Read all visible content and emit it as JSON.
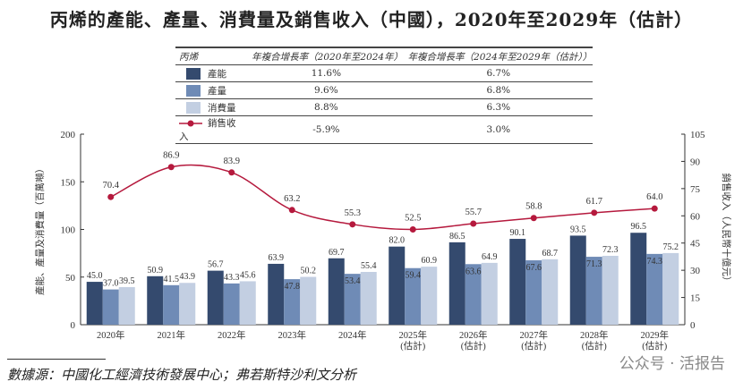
{
  "title": "丙烯的產能、產量、消費量及銷售收入（中國），2020年至2029年（估計）",
  "legend_table": {
    "headers": [
      "丙烯",
      "年複合增長率（2020年至2024年）",
      "年複合增長率（2024年至2029年（估計））"
    ],
    "rows": [
      {
        "label": "產能",
        "color": "#344a6e",
        "cagr1": "11.6%",
        "cagr2": "6.7%"
      },
      {
        "label": "產量",
        "color": "#6f8bb6",
        "cagr1": "9.6%",
        "cagr2": "6.8%"
      },
      {
        "label": "消費量",
        "color": "#c3cfe2",
        "cagr1": "8.8%",
        "cagr2": "6.3%"
      },
      {
        "label": "銷售收入",
        "color": "#b5193d",
        "cagr1": "-5.9%",
        "cagr2": "3.0%"
      }
    ]
  },
  "chart_data": {
    "type": "bar+line",
    "categories": [
      "2020年",
      "2021年",
      "2022年",
      "2023年",
      "2024年",
      "2025年\n(估計)",
      "2026年\n(估計)",
      "2027年\n(估計)",
      "2028年\n(估計)",
      "2029年\n(估計)"
    ],
    "series": [
      {
        "name": "產能",
        "axis": "left",
        "values": [
          45.0,
          50.9,
          56.7,
          63.9,
          69.7,
          82.0,
          86.5,
          90.1,
          93.5,
          96.5
        ]
      },
      {
        "name": "產量",
        "axis": "left",
        "values": [
          37.0,
          41.5,
          43.3,
          47.8,
          53.4,
          59.4,
          63.6,
          67.6,
          71.3,
          74.3
        ]
      },
      {
        "name": "消費量",
        "axis": "left",
        "values": [
          39.5,
          43.9,
          45.6,
          50.2,
          55.4,
          60.9,
          64.9,
          68.7,
          72.3,
          75.2
        ]
      },
      {
        "name": "銷售收入",
        "axis": "right",
        "type": "line",
        "values": [
          70.4,
          86.9,
          83.9,
          63.2,
          55.3,
          52.5,
          55.7,
          58.8,
          61.7,
          64.0
        ]
      }
    ],
    "ylabel": "產能、產量及消費量（百萬噸）",
    "ylabel_right": "銷售收入（人民幣十億元）",
    "ylim": [
      0,
      200
    ],
    "yticks": [
      0,
      50,
      100,
      150,
      200
    ],
    "ylim_right": [
      0,
      105
    ],
    "yticks_right": [
      0,
      15,
      30,
      45,
      60,
      75,
      90,
      105
    ],
    "grid": false
  },
  "source": "數據源：中國化工經濟技術發展中心；弗若斯特沙利文分析",
  "watermark": "公众号 · 活报告"
}
